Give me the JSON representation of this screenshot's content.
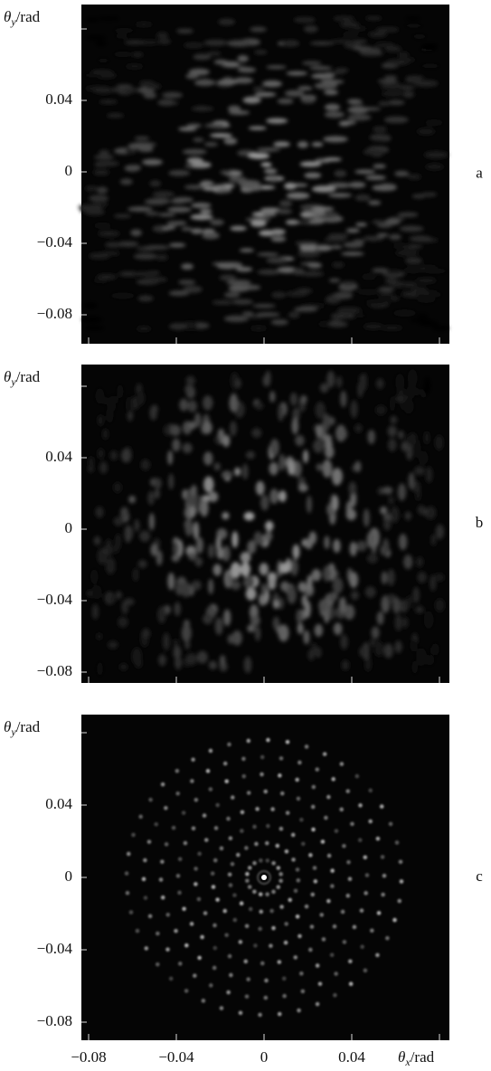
{
  "panels": [
    {
      "label": "a",
      "y_axis_label": {
        "symbol": "θ",
        "subscript": "y",
        "unit": "/rad"
      },
      "y_tick_labels": [
        "0.04",
        "0",
        "−0.04",
        "−0.08"
      ]
    },
    {
      "label": "b",
      "y_axis_label": {
        "symbol": "θ",
        "subscript": "y",
        "unit": "/rad"
      },
      "y_tick_labels": [
        "0.04",
        "0",
        "−0.04",
        "−0.08"
      ]
    },
    {
      "label": "c",
      "y_axis_label": {
        "symbol": "θ",
        "subscript": "y",
        "unit": "/rad"
      },
      "y_tick_labels": [
        "0.04",
        "0",
        "−0.04",
        "−0.08"
      ]
    }
  ],
  "x_axis_label": {
    "symbol": "θ",
    "subscript": "x",
    "unit": "/rad"
  },
  "x_tick_labels": [
    "−0.08",
    "−0.04",
    "0",
    "0.04"
  ]
}
